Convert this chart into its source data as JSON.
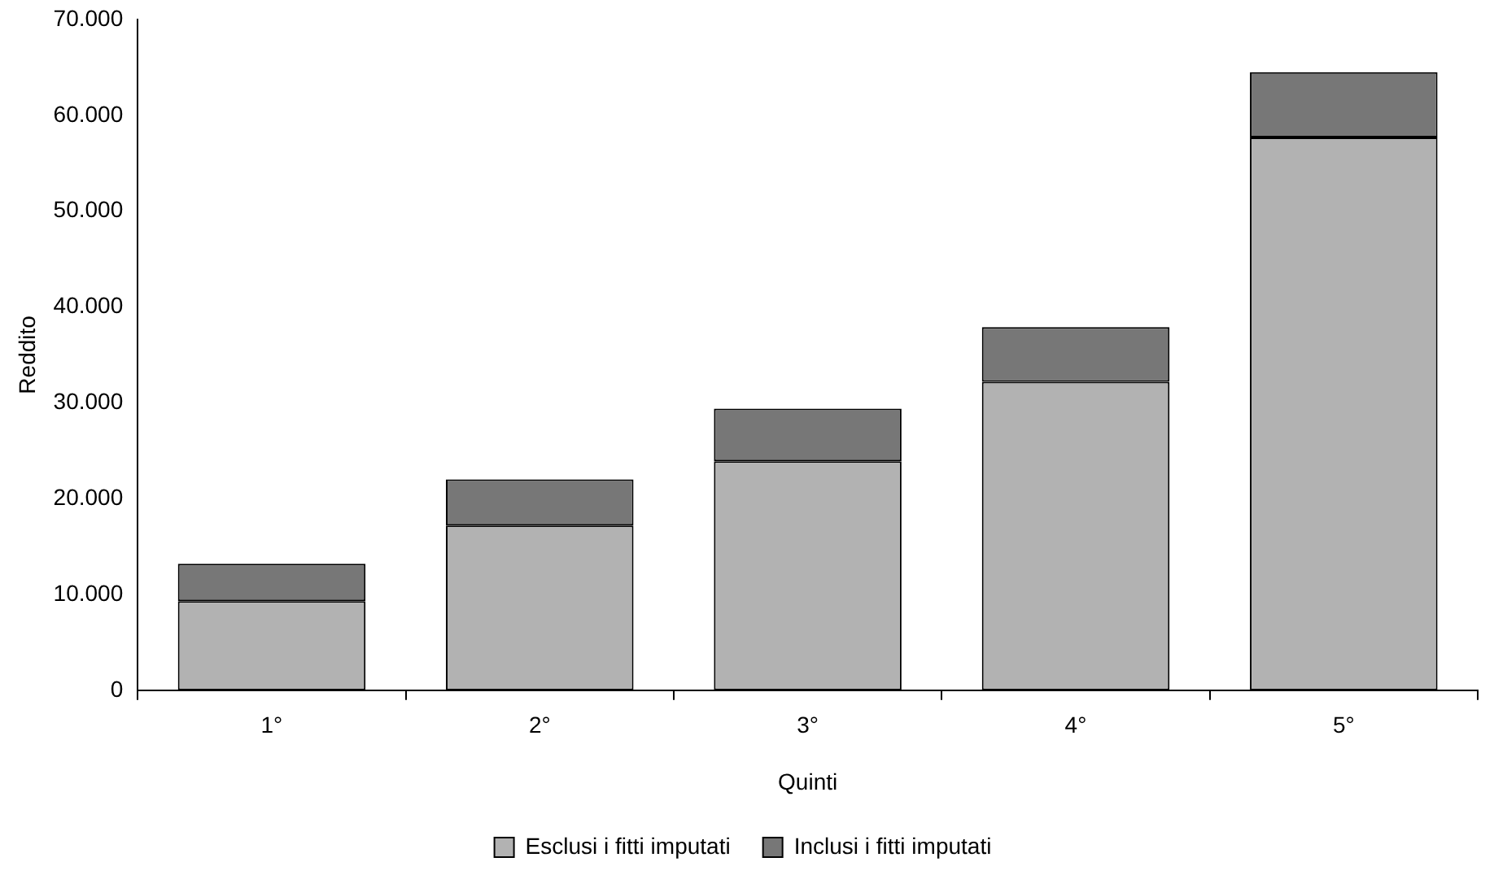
{
  "chart_data": {
    "type": "bar",
    "stacked": true,
    "xlabel": "Quinti",
    "ylabel": "Reddito",
    "categories": [
      "1°",
      "2°",
      "3°",
      "4°",
      "5°"
    ],
    "series": [
      {
        "name": "Esclusi i fitti imputati",
        "color": "#b2b2b2",
        "values": [
          9300,
          17200,
          23900,
          32200,
          57700
        ]
      },
      {
        "name": "Inclusi i fitti imputati",
        "color": "#777777",
        "values": [
          3900,
          4800,
          5500,
          5700,
          6800
        ]
      }
    ],
    "ylim": [
      0,
      70000
    ],
    "yticks": [
      0,
      {
        "value": 10000,
        "label": "10.000"
      },
      {
        "value": 20000,
        "label": "20.000"
      },
      {
        "value": 30000,
        "label": "30.000"
      },
      {
        "value": 40000,
        "label": "40.000"
      },
      {
        "value": 50000,
        "label": "50.000"
      },
      {
        "value": 60000,
        "label": "60.000"
      },
      {
        "value": 70000,
        "label": "70.000"
      }
    ],
    "grid": false,
    "legend": "bottom"
  }
}
